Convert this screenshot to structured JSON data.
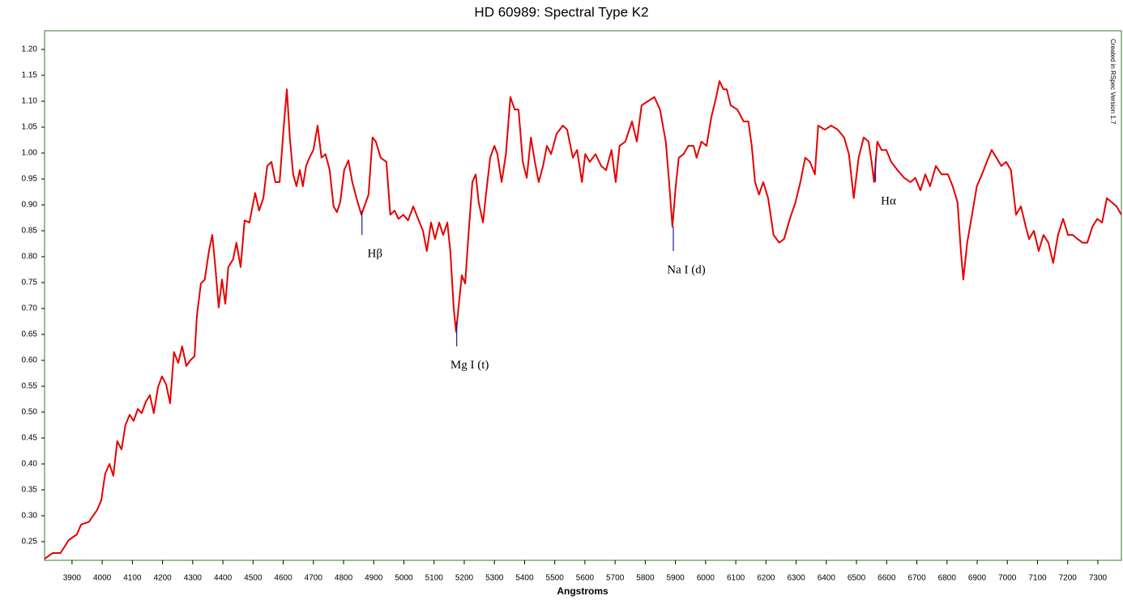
{
  "chart_data": {
    "type": "line",
    "title": "HD 60989: Spectral Type K2",
    "x_label": "Angstroms",
    "footnote": "Created in RSpec Version 1.7",
    "xlim": [
      3809,
      7378
    ],
    "ylim": [
      0.214,
      1.236
    ],
    "xticks": [
      3900,
      4000,
      4100,
      4200,
      4300,
      4400,
      4500,
      4600,
      4700,
      4800,
      4900,
      5000,
      5100,
      5200,
      5300,
      5400,
      5500,
      5600,
      5700,
      5800,
      5900,
      6000,
      6100,
      6200,
      6300,
      6400,
      6500,
      6600,
      6700,
      6800,
      6900,
      7000,
      7100,
      7200,
      7300
    ],
    "yticks": [
      0.25,
      {
        "value": 0.3,
        "label": "0.30"
      },
      0.35,
      {
        "value": 0.4,
        "label": "0.40"
      },
      0.45,
      {
        "value": 0.5,
        "label": "0.50"
      },
      0.55,
      {
        "value": 0.6,
        "label": "0.60"
      },
      0.65,
      {
        "value": 0.7,
        "label": "0.70"
      },
      0.75,
      {
        "value": 0.8,
        "label": "0.80"
      },
      0.85,
      {
        "value": 0.9,
        "label": "0.90"
      },
      0.95,
      {
        "value": 1,
        "label": "1.00"
      },
      1.05,
      {
        "value": 1.1,
        "label": "1.10"
      },
      1.15,
      {
        "value": 1.2,
        "label": "1.20"
      }
    ],
    "x": [
      3809,
      3836,
      3862,
      3889,
      3916,
      3930,
      3956,
      3983,
      3997,
      4010,
      4024,
      4037,
      4050,
      4064,
      4077,
      4091,
      4104,
      4118,
      4131,
      4144,
      4158,
      4171,
      4185,
      4198,
      4212,
      4225,
      4238,
      4252,
      4265,
      4279,
      4292,
      4306,
      4314,
      4327,
      4340,
      4354,
      4365,
      4375,
      4386,
      4397,
      4408,
      4418,
      4434,
      4445,
      4459,
      4472,
      4488,
      4507,
      4520,
      4534,
      4547,
      4561,
      4574,
      4588,
      4601,
      4612,
      4622,
      4633,
      4644,
      4655,
      4665,
      4676,
      4687,
      4700,
      4714,
      4727,
      4740,
      4754,
      4767,
      4778,
      4789,
      4802,
      4816,
      4829,
      4843,
      4859,
      4869,
      4883,
      4896,
      4907,
      4923,
      4942,
      4955,
      4969,
      4982,
      4998,
      5014,
      5031,
      5047,
      5063,
      5076,
      5090,
      5103,
      5117,
      5130,
      5144,
      5154,
      5165,
      5173,
      5181,
      5192,
      5203,
      5214,
      5227,
      5238,
      5248,
      5262,
      5272,
      5286,
      5300,
      5310,
      5324,
      5338,
      5353,
      5367,
      5380,
      5394,
      5407,
      5421,
      5434,
      5447,
      5461,
      5474,
      5488,
      5506,
      5527,
      5541,
      5560,
      5574,
      5590,
      5601,
      5616,
      5635,
      5654,
      5670,
      5688,
      5702,
      5715,
      5734,
      5756,
      5772,
      5788,
      5809,
      5830,
      5849,
      5868,
      5879,
      5890,
      5901,
      5911,
      5927,
      5943,
      5960,
      5970,
      5986,
      6003,
      6019,
      6035,
      6046,
      6059,
      6070,
      6083,
      6105,
      6126,
      6142,
      6153,
      6164,
      6177,
      6191,
      6207,
      6225,
      6244,
      6260,
      6279,
      6298,
      6314,
      6330,
      6346,
      6362,
      6373,
      6395,
      6416,
      6438,
      6459,
      6475,
      6491,
      6507,
      6524,
      6540,
      6550,
      6558,
      6569,
      6583,
      6599,
      6615,
      6636,
      6658,
      6679,
      6695,
      6712,
      6728,
      6744,
      6763,
      6782,
      6803,
      6819,
      6835,
      6846,
      6854,
      6867,
      6883,
      6899,
      6916,
      6932,
      6948,
      6964,
      6980,
      6996,
      7012,
      7029,
      7045,
      7061,
      7072,
      7088,
      7104,
      7120,
      7136,
      7152,
      7168,
      7185,
      7201,
      7217,
      7233,
      7249,
      7265,
      7282,
      7298,
      7314,
      7330,
      7346,
      7362,
      7378
    ],
    "series": [
      {
        "color": "#e60000",
        "values": [
          0.217,
          0.228,
          0.228,
          0.253,
          0.264,
          0.283,
          0.288,
          0.311,
          0.33,
          0.381,
          0.4,
          0.377,
          0.444,
          0.428,
          0.475,
          0.495,
          0.483,
          0.506,
          0.498,
          0.519,
          0.533,
          0.498,
          0.548,
          0.569,
          0.553,
          0.517,
          0.616,
          0.595,
          0.627,
          0.589,
          0.6,
          0.608,
          0.686,
          0.748,
          0.756,
          0.811,
          0.842,
          0.78,
          0.702,
          0.756,
          0.709,
          0.78,
          0.795,
          0.827,
          0.78,
          0.87,
          0.866,
          0.923,
          0.889,
          0.913,
          0.975,
          0.983,
          0.944,
          0.944,
          1.045,
          1.123,
          1.03,
          0.959,
          0.936,
          0.967,
          0.936,
          0.975,
          0.991,
          1.006,
          1.053,
          0.991,
          0.998,
          0.967,
          0.897,
          0.886,
          0.905,
          0.967,
          0.986,
          0.944,
          0.913,
          0.881,
          0.897,
          0.92,
          1.03,
          1.022,
          0.991,
          0.983,
          0.881,
          0.889,
          0.873,
          0.881,
          0.87,
          0.897,
          0.873,
          0.85,
          0.811,
          0.866,
          0.834,
          0.866,
          0.842,
          0.866,
          0.811,
          0.702,
          0.655,
          0.702,
          0.764,
          0.748,
          0.842,
          0.944,
          0.959,
          0.905,
          0.866,
          0.92,
          0.991,
          1.014,
          0.998,
          0.944,
          0.998,
          1.108,
          1.084,
          1.084,
          0.983,
          0.952,
          1.03,
          0.983,
          0.944,
          0.975,
          1.014,
          0.998,
          1.037,
          1.053,
          1.045,
          0.991,
          1.006,
          0.944,
          0.998,
          0.983,
          0.998,
          0.975,
          0.967,
          1.006,
          0.944,
          1.014,
          1.022,
          1.061,
          1.022,
          1.092,
          1.1,
          1.108,
          1.084,
          1.022,
          0.944,
          0.858,
          0.936,
          0.991,
          0.998,
          1.014,
          1.014,
          0.991,
          1.022,
          1.014,
          1.069,
          1.108,
          1.139,
          1.123,
          1.123,
          1.092,
          1.084,
          1.061,
          1.061,
          1.014,
          0.944,
          0.92,
          0.944,
          0.913,
          0.842,
          0.827,
          0.834,
          0.873,
          0.905,
          0.944,
          0.991,
          0.983,
          0.959,
          1.053,
          1.045,
          1.053,
          1.045,
          1.03,
          0.998,
          0.913,
          0.991,
          1.03,
          1.022,
          0.983,
          0.944,
          1.022,
          1.006,
          1.006,
          0.983,
          0.967,
          0.952,
          0.944,
          0.952,
          0.928,
          0.959,
          0.936,
          0.975,
          0.959,
          0.959,
          0.936,
          0.905,
          0.811,
          0.756,
          0.827,
          0.881,
          0.936,
          0.959,
          0.983,
          1.006,
          0.991,
          0.975,
          0.983,
          0.967,
          0.881,
          0.897,
          0.858,
          0.834,
          0.85,
          0.811,
          0.842,
          0.827,
          0.788,
          0.842,
          0.873,
          0.842,
          0.842,
          0.834,
          0.827,
          0.827,
          0.858,
          0.873,
          0.866,
          0.913,
          0.905,
          0.897,
          0.881
        ]
      }
    ],
    "annotations": [
      {
        "text": "Hβ",
        "x": 4861,
        "y": 0.842
      },
      {
        "text": "Mg I (t)",
        "x": 5175,
        "y": 0.627
      },
      {
        "text": "Na I (d)",
        "x": 5893,
        "y": 0.811
      },
      {
        "text": "Hα",
        "x": 6563,
        "y": 0.944
      }
    ],
    "annotation_color": "#1a1aa0",
    "frame_color": "#2d7d2d",
    "x_label_color": "#e60000"
  }
}
